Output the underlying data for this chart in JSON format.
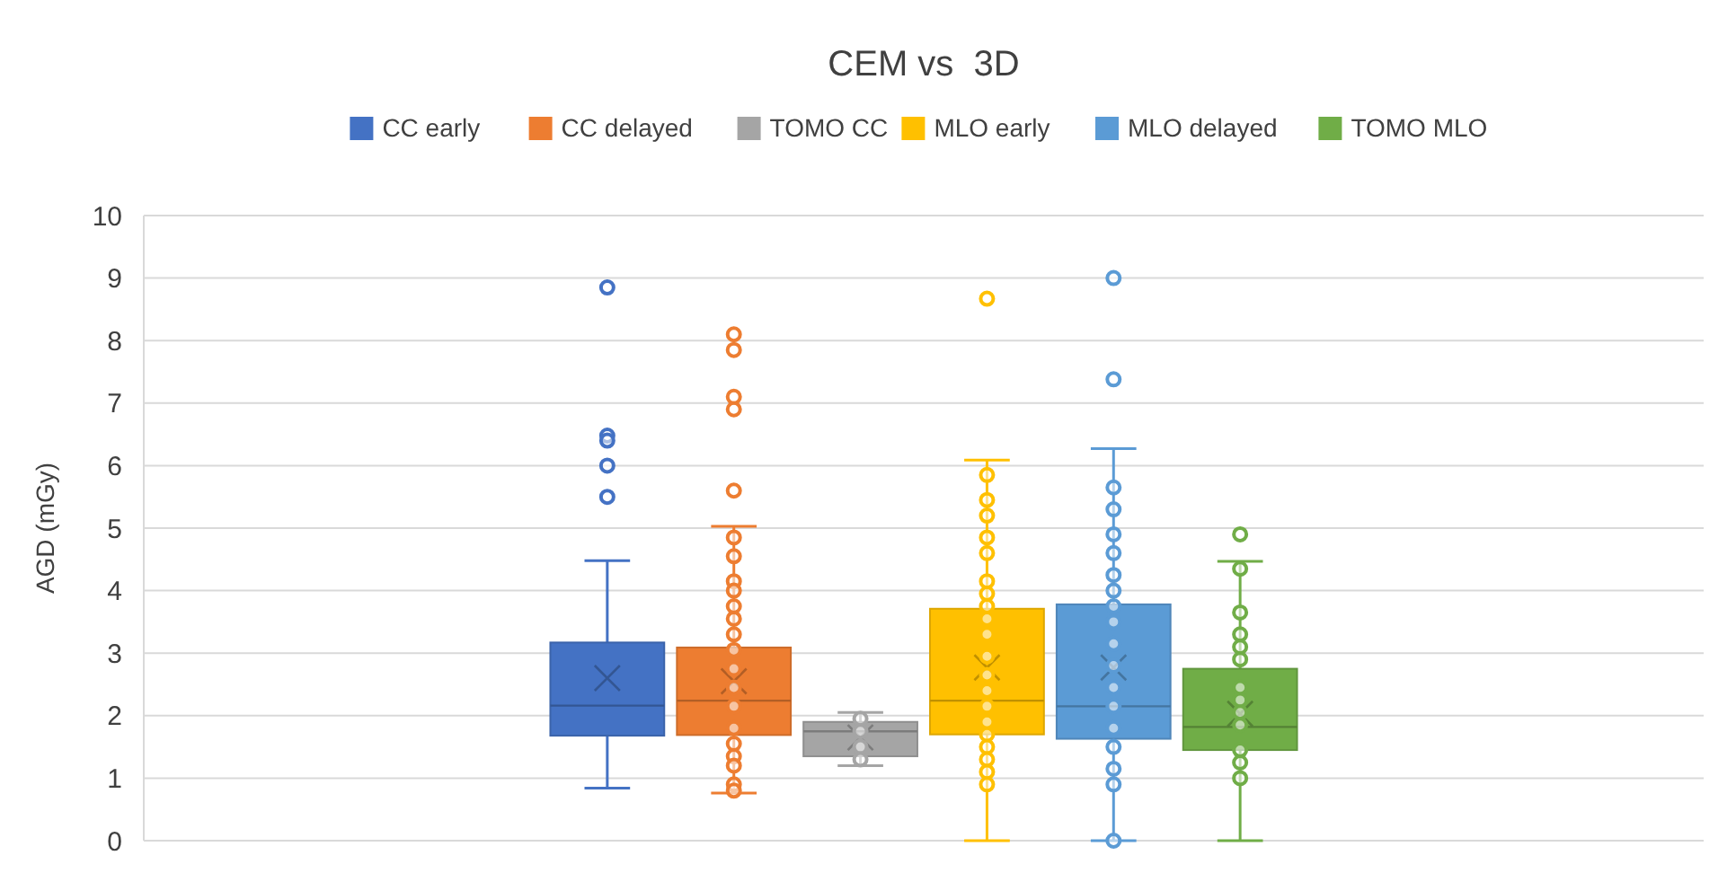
{
  "chart_data": {
    "type": "box",
    "title": "CEM vs  3D",
    "ylabel": "AGD (mGy)",
    "categories": [
      null
    ],
    "ylim": [
      0,
      10
    ],
    "yticks": [
      0,
      1,
      2,
      3,
      4,
      5,
      6,
      7,
      8,
      9,
      10
    ],
    "grid": "y",
    "legend": "top",
    "marker": "circle",
    "series": [
      {
        "name": "CC early",
        "color": "#4472c4",
        "boxes": [
          {
            "low": 0.84,
            "q1": 1.68,
            "median": 2.16,
            "q3": 3.17,
            "high": 4.48,
            "mean": 2.6,
            "outliers": [
              8.85,
              6.48,
              6.4,
              6.0,
              5.5
            ]
          }
        ]
      },
      {
        "name": "CC delayed",
        "color": "#ed7d31",
        "boxes": [
          {
            "low": 0.76,
            "q1": 1.69,
            "median": 2.24,
            "q3": 3.09,
            "high": 5.03,
            "mean": 2.55,
            "outliers": [
              8.1,
              7.85,
              7.1,
              6.9,
              5.6,
              4.85,
              4.55,
              4.15,
              4.0,
              3.75,
              3.55,
              3.3,
              3.05,
              2.75,
              2.45,
              2.15,
              1.8,
              1.55,
              1.35,
              1.2,
              0.9,
              0.8
            ]
          }
        ]
      },
      {
        "name": "TOMO CC",
        "color": "#a5a5a5",
        "boxes": [
          {
            "low": 1.2,
            "q1": 1.35,
            "median": 1.75,
            "q3": 1.9,
            "high": 2.05,
            "mean": 1.65,
            "outliers": [
              1.95,
              1.75,
              1.5,
              1.3
            ]
          }
        ]
      },
      {
        "name": "MLO early",
        "color": "#ffc000",
        "boxes": [
          {
            "low": 0,
            "q1": 1.7,
            "median": 2.24,
            "q3": 3.71,
            "high": 6.09,
            "mean": 2.77,
            "outliers": [
              8.67,
              5.85,
              5.45,
              5.2,
              4.85,
              4.6,
              4.15,
              3.95,
              3.75,
              3.55,
              3.3,
              2.95,
              2.65,
              2.4,
              2.15,
              1.9,
              1.7,
              1.5,
              1.3,
              1.1,
              0.9
            ]
          }
        ]
      },
      {
        "name": "MLO delayed",
        "color": "#5b9bd5",
        "boxes": [
          {
            "low": 0,
            "q1": 1.63,
            "median": 2.15,
            "q3": 3.78,
            "high": 6.27,
            "mean": 2.77,
            "outliers": [
              9.0,
              7.38,
              5.65,
              5.3,
              4.9,
              4.6,
              4.25,
              4.0,
              3.75,
              3.5,
              3.15,
              2.8,
              2.45,
              2.15,
              1.8,
              1.5,
              1.15,
              0.9,
              0
            ]
          }
        ]
      },
      {
        "name": "TOMO MLO",
        "color": "#70ad47",
        "boxes": [
          {
            "low": 0,
            "q1": 1.45,
            "median": 1.82,
            "q3": 2.75,
            "high": 4.47,
            "mean": 2.03,
            "outliers": [
              4.9,
              4.35,
              3.65,
              3.3,
              3.1,
              2.9,
              2.45,
              2.25,
              2.05,
              1.85,
              1.45,
              1.25,
              1.0
            ]
          }
        ]
      }
    ]
  }
}
